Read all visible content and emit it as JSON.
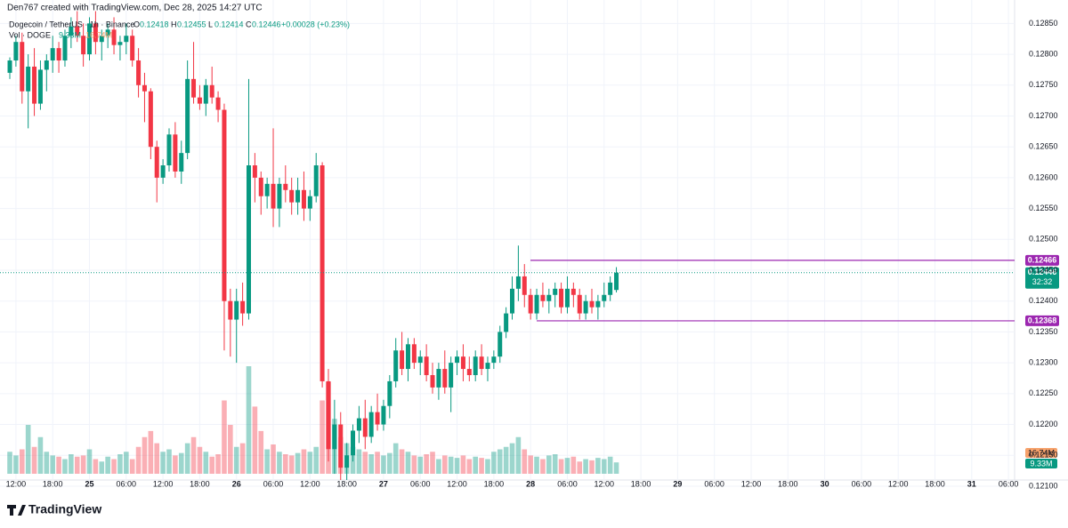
{
  "chart_data": {
    "type": "candlestick",
    "credit": "Den767 created with TradingView.com, Dec 28, 2025 14:27 UTC",
    "title": "Dogecoin / TetherUS · 1h · Binance",
    "ohlc_labels": [
      "O",
      "H",
      "L",
      "C"
    ],
    "change": "+0.00028 (+0.23%)",
    "volume_title": "Vol · DOGE",
    "volume_last_label": "9.33M",
    "volume_ma_label": "16.74M",
    "brand": "TradingView",
    "up_color": "#089981",
    "down_color": "#f23645",
    "open": [
      0.1277,
      0.1279,
      0.1282,
      0.1274,
      0.1278,
      0.1272,
      0.12775,
      0.1279,
      0.1281,
      0.1279,
      0.1283,
      0.12845,
      0.1283,
      0.128,
      0.1285,
      0.1282,
      0.1283,
      0.1284,
      0.12815,
      0.1282,
      0.1283,
      0.1279,
      0.1275,
      0.1274,
      0.1265,
      0.126,
      0.1262,
      0.1267,
      0.1261,
      0.1264,
      0.1276,
      0.1273,
      0.1272,
      0.1275,
      0.1273,
      0.1271,
      0.124,
      0.1237,
      0.124,
      0.1238,
      0.1262,
      0.126,
      0.1257,
      0.1259,
      0.1255,
      0.1259,
      0.1258,
      0.1256,
      0.1258,
      0.1255,
      0.1257,
      0.1262,
      0.1227,
      0.1216,
      0.122,
      0.1213,
      0.1215,
      0.1219,
      0.1221,
      0.1218,
      0.1222,
      0.122,
      0.1223,
      0.1227,
      0.1232,
      0.1229,
      0.1233,
      0.123,
      0.1231,
      0.1228,
      0.1226,
      0.1229,
      0.1226,
      0.123,
      0.1231,
      0.1229,
      0.1228,
      0.1231,
      0.1229,
      0.123,
      0.1231,
      0.1235,
      0.1238,
      0.1242,
      0.1244,
      0.1241,
      0.1238,
      0.1241,
      0.124,
      0.1241,
      0.1242,
      0.1239,
      0.1242,
      0.1241,
      0.1238,
      0.124,
      0.1239,
      0.124,
      0.1241,
      0.12418
    ],
    "high": [
      0.12795,
      0.1283,
      0.12835,
      0.128,
      0.1281,
      0.1279,
      0.128,
      0.1283,
      0.1282,
      0.1284,
      0.1286,
      0.1287,
      0.1285,
      0.1286,
      0.1287,
      0.1284,
      0.1285,
      0.1286,
      0.1283,
      0.1285,
      0.1284,
      0.1281,
      0.1277,
      0.12745,
      0.1266,
      0.1263,
      0.1268,
      0.1269,
      0.1266,
      0.1279,
      0.1282,
      0.1275,
      0.1276,
      0.1278,
      0.1274,
      0.1272,
      0.1242,
      0.1242,
      0.1243,
      0.1276,
      0.1264,
      0.1261,
      0.126,
      0.1268,
      0.126,
      0.1262,
      0.126,
      0.126,
      0.1261,
      0.1258,
      0.1264,
      0.12625,
      0.1229,
      0.1224,
      0.1222,
      0.1217,
      0.122,
      0.1223,
      0.1224,
      0.1223,
      0.1225,
      0.1224,
      0.1228,
      0.1234,
      0.1235,
      0.1234,
      0.1234,
      0.1232,
      0.1233,
      0.123,
      0.123,
      0.1232,
      0.1231,
      0.1232,
      0.1233,
      0.1231,
      0.1232,
      0.1233,
      0.1231,
      0.1232,
      0.1236,
      0.1239,
      0.1244,
      0.1249,
      0.1246,
      0.1242,
      0.1242,
      0.1243,
      0.1242,
      0.1243,
      0.1243,
      0.1244,
      0.1243,
      0.1242,
      0.1241,
      0.1242,
      0.1241,
      0.1243,
      0.1244,
      0.12455
    ],
    "low": [
      0.1276,
      0.1278,
      0.1272,
      0.1268,
      0.127,
      0.1271,
      0.1274,
      0.1277,
      0.1277,
      0.1278,
      0.1281,
      0.1282,
      0.1278,
      0.1279,
      0.128,
      0.1279,
      0.1281,
      0.128,
      0.1279,
      0.128,
      0.1278,
      0.1273,
      0.1269,
      0.1263,
      0.1256,
      0.1259,
      0.1261,
      0.126,
      0.1259,
      0.1263,
      0.1272,
      0.1271,
      0.127,
      0.1272,
      0.1269,
      0.1232,
      0.1231,
      0.123,
      0.1236,
      0.1237,
      0.1256,
      0.1254,
      0.1255,
      0.1252,
      0.1252,
      0.1256,
      0.1254,
      0.1254,
      0.1253,
      0.1253,
      0.1256,
      0.1226,
      0.1214,
      0.1212,
      0.1211,
      0.1211,
      0.1214,
      0.1217,
      0.1216,
      0.1217,
      0.1219,
      0.1219,
      0.1221,
      0.1226,
      0.1228,
      0.1227,
      0.1229,
      0.1228,
      0.1227,
      0.1225,
      0.1224,
      0.1225,
      0.1222,
      0.1228,
      0.1227,
      0.1227,
      0.1227,
      0.1228,
      0.1227,
      0.1229,
      0.123,
      0.1234,
      0.1237,
      0.124,
      0.1239,
      0.1237,
      0.1237,
      0.1239,
      0.1238,
      0.1239,
      0.1238,
      0.1238,
      0.1239,
      0.1237,
      0.1237,
      0.1238,
      0.1237,
      0.1239,
      0.124,
      0.12414
    ],
    "close": [
      0.1279,
      0.1282,
      0.1274,
      0.1278,
      0.1272,
      0.12775,
      0.1279,
      0.1281,
      0.1279,
      0.1283,
      0.12845,
      0.1283,
      0.128,
      0.1285,
      0.1282,
      0.1283,
      0.1284,
      0.12815,
      0.1282,
      0.1283,
      0.1279,
      0.1275,
      0.1274,
      0.1265,
      0.126,
      0.1262,
      0.1267,
      0.1261,
      0.1264,
      0.1276,
      0.1273,
      0.1272,
      0.1275,
      0.1273,
      0.1271,
      0.124,
      0.1237,
      0.124,
      0.1238,
      0.1262,
      0.126,
      0.1257,
      0.1259,
      0.1255,
      0.1259,
      0.1258,
      0.1256,
      0.1258,
      0.1255,
      0.1257,
      0.1262,
      0.1227,
      0.1216,
      0.122,
      0.1213,
      0.1215,
      0.1219,
      0.1221,
      0.1218,
      0.1222,
      0.122,
      0.1223,
      0.1227,
      0.1232,
      0.1229,
      0.1233,
      0.123,
      0.1231,
      0.1228,
      0.1226,
      0.1229,
      0.1226,
      0.123,
      0.1231,
      0.1229,
      0.1228,
      0.1231,
      0.1229,
      0.123,
      0.1231,
      0.1235,
      0.1238,
      0.1242,
      0.1244,
      0.1241,
      0.1238,
      0.1241,
      0.124,
      0.1241,
      0.1242,
      0.1239,
      0.1242,
      0.1241,
      0.1238,
      0.124,
      0.1239,
      0.124,
      0.1241,
      0.1243,
      0.12446
    ],
    "volume": [
      18,
      15,
      20,
      40,
      22,
      30,
      18,
      15,
      14,
      12,
      16,
      14,
      15,
      20,
      12,
      10,
      14,
      12,
      16,
      18,
      12,
      22,
      30,
      35,
      25,
      18,
      20,
      15,
      17,
      25,
      30,
      22,
      18,
      14,
      16,
      60,
      40,
      22,
      25,
      88,
      55,
      35,
      20,
      24,
      18,
      16,
      15,
      17,
      20,
      18,
      22,
      60,
      75,
      45,
      30,
      25,
      22,
      20,
      18,
      16,
      18,
      15,
      17,
      25,
      20,
      18,
      15,
      14,
      16,
      18,
      12,
      15,
      14,
      13,
      15,
      12,
      14,
      13,
      12,
      18,
      20,
      22,
      25,
      30,
      20,
      15,
      14,
      12,
      15,
      16,
      12,
      13,
      14,
      10,
      12,
      11,
      13,
      12,
      14,
      9.33
    ],
    "volume_ylim": [
      0,
      120
    ],
    "levels": [
      {
        "value": 0.12466,
        "color": "#9c27b0"
      },
      {
        "value": 0.12368,
        "color": "#9c27b0"
      }
    ],
    "last_price": 0.12446,
    "countdown": "32:32",
    "ylim": [
      0.1211,
      0.12888
    ],
    "yticks": [
      {
        "value": 0.121,
        "label": "0.12100"
      },
      {
        "value": 0.1215,
        "label": "0.12150"
      },
      {
        "value": 0.122,
        "label": "0.12200"
      },
      {
        "value": 0.1225,
        "label": "0.12250"
      },
      {
        "value": 0.123,
        "label": "0.12300"
      },
      {
        "value": 0.1235,
        "label": "0.12350"
      },
      {
        "value": 0.124,
        "label": "0.12400"
      },
      {
        "value": 0.1245,
        "label": "0.12450"
      },
      {
        "value": 0.125,
        "label": "0.12500"
      },
      {
        "value": 0.1255,
        "label": "0.12550"
      },
      {
        "value": 0.126,
        "label": "0.12600"
      },
      {
        "value": 0.1265,
        "label": "0.12650"
      },
      {
        "value": 0.127,
        "label": "0.12700"
      },
      {
        "value": 0.1275,
        "label": "0.12750"
      },
      {
        "value": 0.128,
        "label": "0.12800"
      },
      {
        "value": 0.1285,
        "label": "0.12850"
      }
    ],
    "xlim": [
      -1.6,
      164
    ],
    "xticks": [
      {
        "value": 1,
        "label": "12:00"
      },
      {
        "value": 7,
        "label": "18:00"
      },
      {
        "value": 13,
        "label": "25"
      },
      {
        "value": 19,
        "label": "06:00"
      },
      {
        "value": 25,
        "label": "12:00"
      },
      {
        "value": 31,
        "label": "18:00"
      },
      {
        "value": 37,
        "label": "26"
      },
      {
        "value": 43,
        "label": "06:00"
      },
      {
        "value": 49,
        "label": "12:00"
      },
      {
        "value": 55,
        "label": "18:00"
      },
      {
        "value": 61,
        "label": "27"
      },
      {
        "value": 67,
        "label": "06:00"
      },
      {
        "value": 73,
        "label": "12:00"
      },
      {
        "value": 79,
        "label": "18:00"
      },
      {
        "value": 85,
        "label": "28"
      },
      {
        "value": 91,
        "label": "06:00"
      },
      {
        "value": 97,
        "label": "12:00"
      },
      {
        "value": 103,
        "label": "18:00"
      },
      {
        "value": 109,
        "label": "29"
      },
      {
        "value": 115,
        "label": "06:00"
      },
      {
        "value": 121,
        "label": "12:00"
      },
      {
        "value": 127,
        "label": "18:00"
      },
      {
        "value": 133,
        "label": "30"
      },
      {
        "value": 139,
        "label": "06:00"
      },
      {
        "value": 145,
        "label": "12:00"
      },
      {
        "value": 151,
        "label": "18:00"
      },
      {
        "value": 157,
        "label": "31"
      },
      {
        "value": 163,
        "label": "06:00"
      }
    ],
    "grid": true
  }
}
